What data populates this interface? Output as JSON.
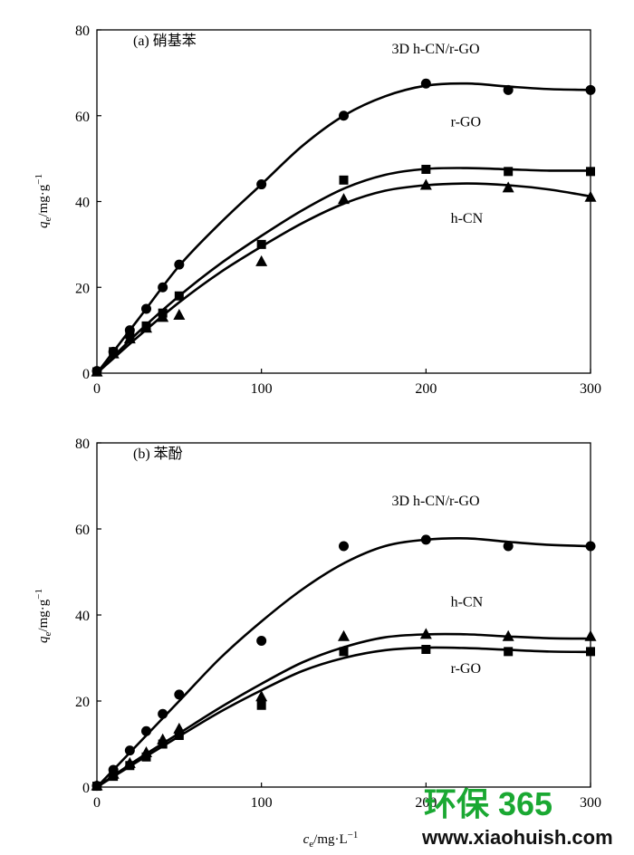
{
  "chart_data": [
    {
      "type": "scatter",
      "panel_label": "(a) 硝基苯",
      "xlabel": "",
      "ylabel": "qe/mg·g⁻¹",
      "xlim": [
        0,
        300
      ],
      "ylim": [
        0,
        80
      ],
      "xticks": [
        "0",
        "100",
        "200",
        "300"
      ],
      "yticks": [
        "0",
        "20",
        "40",
        "60",
        "80"
      ],
      "series": [
        {
          "name": "3D h-CN/r-GO",
          "marker": "circle",
          "x": [
            0,
            10,
            20,
            30,
            40,
            50,
            100,
            150,
            200,
            250,
            300
          ],
          "y": [
            0.5,
            5,
            10,
            15,
            20,
            25.3,
            44,
            60,
            67.5,
            66,
            66
          ],
          "fit_x": [
            0,
            25,
            50,
            75,
            100,
            125,
            150,
            175,
            200,
            225,
            250,
            275,
            300
          ],
          "fit_y": [
            0,
            12.5,
            25,
            35,
            44,
            53,
            60,
            64.5,
            67,
            67.5,
            66.8,
            66.2,
            66
          ]
        },
        {
          "name": "r-GO",
          "marker": "square",
          "x": [
            0,
            10,
            20,
            30,
            40,
            50,
            100,
            150,
            200,
            250,
            300
          ],
          "y": [
            0.3,
            5,
            9,
            11,
            14,
            18,
            30,
            45,
            47.5,
            47,
            47
          ],
          "fit_x": [
            0,
            25,
            50,
            75,
            100,
            125,
            150,
            175,
            200,
            225,
            250,
            275,
            300
          ],
          "fit_y": [
            0,
            9.5,
            18,
            25.5,
            32,
            38,
            43,
            46.2,
            47.6,
            47.8,
            47.5,
            47.2,
            47.2
          ]
        },
        {
          "name": "h-CN",
          "marker": "triangle",
          "x": [
            0,
            10,
            20,
            30,
            40,
            50,
            100,
            150,
            200,
            250,
            300
          ],
          "y": [
            0.3,
            4.5,
            8,
            10.5,
            13,
            13.5,
            26,
            40.5,
            43.8,
            43.2,
            41
          ],
          "fit_x": [
            0,
            25,
            50,
            75,
            100,
            125,
            150,
            175,
            200,
            225,
            250,
            275,
            300
          ],
          "fit_y": [
            0,
            8.5,
            16.5,
            23.5,
            29.5,
            35,
            39.5,
            42.5,
            43.8,
            44.2,
            43.8,
            42.8,
            41.2
          ]
        }
      ],
      "legend_labels": [
        {
          "text": "3D h-CN/r-GO",
          "x": 210,
          "y": 74.5
        },
        {
          "text": "r-GO",
          "x": 215,
          "y": 57.5
        },
        {
          "text": "h-CN",
          "x": 215,
          "y": 35
        }
      ]
    },
    {
      "type": "scatter",
      "panel_label": "(b) 苯酚",
      "xlabel": "ce/mg·L⁻¹",
      "ylabel": "qe/mg·g⁻¹",
      "xlim": [
        0,
        300
      ],
      "ylim": [
        0,
        80
      ],
      "xticks": [
        "0",
        "100",
        "200",
        "300"
      ],
      "yticks": [
        "0",
        "20",
        "40",
        "60",
        "80"
      ],
      "series": [
        {
          "name": "3D h-CN/r-GO",
          "marker": "circle",
          "x": [
            0,
            10,
            20,
            30,
            40,
            50,
            100,
            150,
            200,
            250,
            300
          ],
          "y": [
            0.3,
            4,
            8.5,
            13,
            17,
            21.5,
            34,
            56,
            57.5,
            56,
            56
          ],
          "fit_x": [
            0,
            25,
            50,
            75,
            100,
            125,
            150,
            175,
            200,
            225,
            250,
            275,
            300
          ],
          "fit_y": [
            0,
            10,
            20,
            30,
            38.5,
            46,
            52,
            56,
            57.5,
            57.8,
            57,
            56.3,
            56
          ]
        },
        {
          "name": "h-CN",
          "marker": "triangle",
          "x": [
            0,
            10,
            20,
            30,
            40,
            50,
            100,
            150,
            200,
            250,
            300
          ],
          "y": [
            0.3,
            3,
            5.5,
            8,
            11,
            13.5,
            21,
            35,
            35.5,
            35,
            35
          ],
          "fit_x": [
            0,
            25,
            50,
            75,
            100,
            125,
            150,
            175,
            200,
            225,
            250,
            275,
            300
          ],
          "fit_y": [
            0,
            6.5,
            12.5,
            18.5,
            24,
            29,
            32.5,
            34.8,
            35.5,
            35.5,
            35,
            34.6,
            34.5
          ]
        },
        {
          "name": "r-GO",
          "marker": "square",
          "x": [
            0,
            10,
            20,
            30,
            40,
            50,
            100,
            150,
            200,
            250,
            300
          ],
          "y": [
            0.2,
            2.5,
            5,
            7,
            10,
            12,
            19,
            31.5,
            32,
            31.5,
            31.5
          ],
          "fit_x": [
            0,
            25,
            50,
            75,
            100,
            125,
            150,
            175,
            200,
            225,
            250,
            275,
            300
          ],
          "fit_y": [
            0,
            6,
            11.8,
            17.5,
            22.5,
            27,
            30,
            31.8,
            32.4,
            32.3,
            31.9,
            31.5,
            31.4
          ]
        }
      ],
      "legend_labels": [
        {
          "text": "3D h-CN/r-GO",
          "x": 210,
          "y": 65.5
        },
        {
          "text": "h-CN",
          "x": 215,
          "y": 42
        },
        {
          "text": "r-GO",
          "x": 215,
          "y": 26.5
        }
      ]
    }
  ],
  "watermark": {
    "brand": "环保 365",
    "url": "www.xiaohuish.com",
    "color": "#1aa832"
  }
}
